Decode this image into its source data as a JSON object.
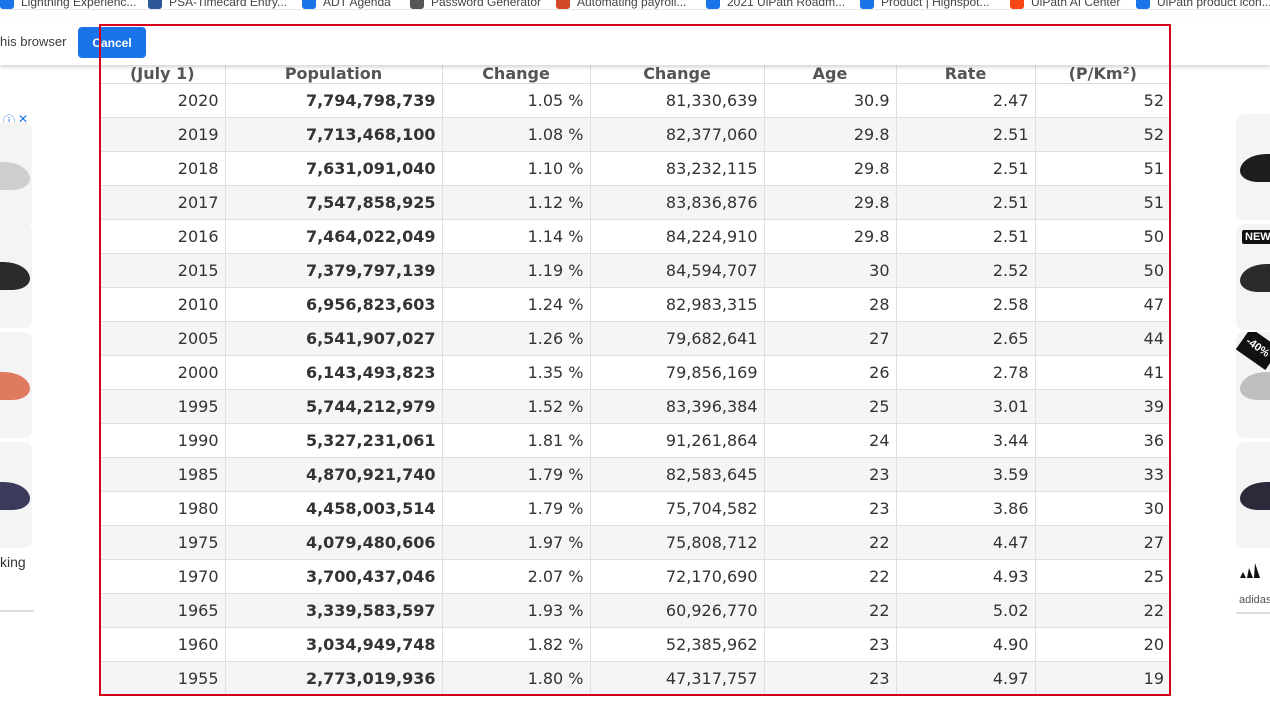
{
  "bookmarks": [
    {
      "label": "Lightning Experienc...",
      "icon": "cloud-icon",
      "color": "#1a73e8"
    },
    {
      "label": "PSA-Timecard Entry...",
      "icon": "word-doc-icon",
      "color": "#2b579a"
    },
    {
      "label": "ADT Agenda",
      "icon": "uipath-icon",
      "color": "#1a73e8"
    },
    {
      "label": "Password Generator",
      "icon": "gear-icon",
      "color": "#555555"
    },
    {
      "label": "Automating payroll...",
      "icon": "powerpoint-icon",
      "color": "#d24726"
    },
    {
      "label": "2021 UiPath Roadm...",
      "icon": "highspot-icon",
      "color": "#1a73e8"
    },
    {
      "label": "Product | Highspot...",
      "icon": "highspot-icon",
      "color": "#1a73e8"
    },
    {
      "label": "UiPath AI Center",
      "icon": "uipath-logo-icon",
      "color": "#fa4616"
    },
    {
      "label": "UiPath product icon...",
      "icon": "uipath-icon",
      "color": "#1a73e8"
    }
  ],
  "infobar": {
    "message": "his browser",
    "cancel_label": "Cancel"
  },
  "table": {
    "headers": [
      "(July 1)",
      "Population",
      "Change",
      "Change",
      "Age",
      "Rate",
      "(P/Km²)"
    ],
    "rows": [
      [
        "2020",
        "7,794,798,739",
        "1.05 %",
        "81,330,639",
        "30.9",
        "2.47",
        "52"
      ],
      [
        "2019",
        "7,713,468,100",
        "1.08 %",
        "82,377,060",
        "29.8",
        "2.51",
        "52"
      ],
      [
        "2018",
        "7,631,091,040",
        "1.10 %",
        "83,232,115",
        "29.8",
        "2.51",
        "51"
      ],
      [
        "2017",
        "7,547,858,925",
        "1.12 %",
        "83,836,876",
        "29.8",
        "2.51",
        "51"
      ],
      [
        "2016",
        "7,464,022,049",
        "1.14 %",
        "84,224,910",
        "29.8",
        "2.51",
        "50"
      ],
      [
        "2015",
        "7,379,797,139",
        "1.19 %",
        "84,594,707",
        "30",
        "2.52",
        "50"
      ],
      [
        "2010",
        "6,956,823,603",
        "1.24 %",
        "82,983,315",
        "28",
        "2.58",
        "47"
      ],
      [
        "2005",
        "6,541,907,027",
        "1.26 %",
        "79,682,641",
        "27",
        "2.65",
        "44"
      ],
      [
        "2000",
        "6,143,493,823",
        "1.35 %",
        "79,856,169",
        "26",
        "2.78",
        "41"
      ],
      [
        "1995",
        "5,744,212,979",
        "1.52 %",
        "83,396,384",
        "25",
        "3.01",
        "39"
      ],
      [
        "1990",
        "5,327,231,061",
        "1.81 %",
        "91,261,864",
        "24",
        "3.44",
        "36"
      ],
      [
        "1985",
        "4,870,921,740",
        "1.79 %",
        "82,583,645",
        "23",
        "3.59",
        "33"
      ],
      [
        "1980",
        "4,458,003,514",
        "1.79 %",
        "75,704,582",
        "23",
        "3.86",
        "30"
      ],
      [
        "1975",
        "4,079,480,606",
        "1.97 %",
        "75,808,712",
        "22",
        "4.47",
        "27"
      ],
      [
        "1970",
        "3,700,437,046",
        "2.07 %",
        "72,170,690",
        "22",
        "4.93",
        "25"
      ],
      [
        "1965",
        "3,339,583,597",
        "1.93 %",
        "60,926,770",
        "22",
        "5.02",
        "22"
      ],
      [
        "1960",
        "3,034,949,748",
        "1.82 %",
        "52,385,962",
        "23",
        "4.90",
        "20"
      ],
      [
        "1955",
        "2,773,019,936",
        "1.80 %",
        "47,317,757",
        "23",
        "4.97",
        "19"
      ]
    ]
  },
  "left_ad": {
    "caption": "king",
    "shoe_colors": [
      "#cfcfcf",
      "#2a2a2a",
      "#e07a5f",
      "#3b3a5c"
    ]
  },
  "right_ad": {
    "badge_new": "NEW",
    "badge_discount": "-40%",
    "brand": "adidas",
    "shoe_colors": [
      "#1e1e1e",
      "#2b2b2b",
      "#bfbfbf",
      "#2a2a3a"
    ]
  },
  "colors": {
    "highlight_frame": "#d6001c",
    "button_blue": "#1a73e8"
  }
}
